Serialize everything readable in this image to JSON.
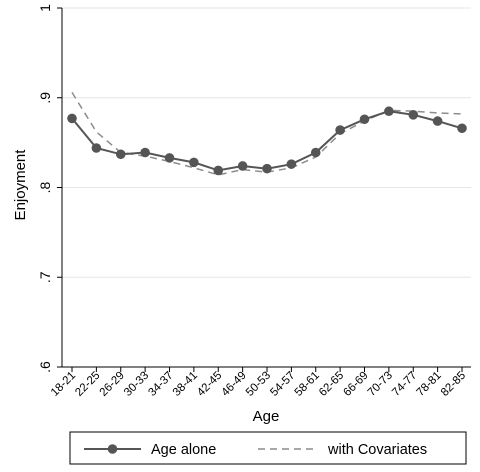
{
  "chart_data": {
    "type": "line",
    "xlabel": "Age",
    "ylabel": "Enjoyment",
    "ylim": [
      0.6,
      1.0
    ],
    "y_ticks": [
      0.6,
      0.7,
      0.8,
      0.9,
      1.0
    ],
    "y_tick_labels": [
      ".6",
      ".7",
      ".8",
      ".9",
      "1"
    ],
    "grid": "horizontal",
    "legend_position": "bottom",
    "categories": [
      "18-21",
      "22-25",
      "26-29",
      "30-33",
      "34-37",
      "38-41",
      "42-45",
      "46-49",
      "50-53",
      "54-57",
      "58-61",
      "62-65",
      "66-69",
      "70-73",
      "74-77",
      "78-81",
      "82-85"
    ],
    "series": [
      {
        "name": "Age alone",
        "style": "solid-markers",
        "color": "#555555",
        "values": [
          0.877,
          0.844,
          0.837,
          0.839,
          0.833,
          0.828,
          0.819,
          0.824,
          0.821,
          0.826,
          0.839,
          0.864,
          0.876,
          0.885,
          0.881,
          0.874,
          0.866
        ]
      },
      {
        "name": "with Covariates",
        "style": "dashed",
        "color": "#8c8c8c",
        "values": [
          0.906,
          0.862,
          0.839,
          0.835,
          0.829,
          0.822,
          0.814,
          0.82,
          0.817,
          0.822,
          0.834,
          0.86,
          0.874,
          0.886,
          0.885,
          0.883,
          0.882
        ]
      }
    ]
  }
}
